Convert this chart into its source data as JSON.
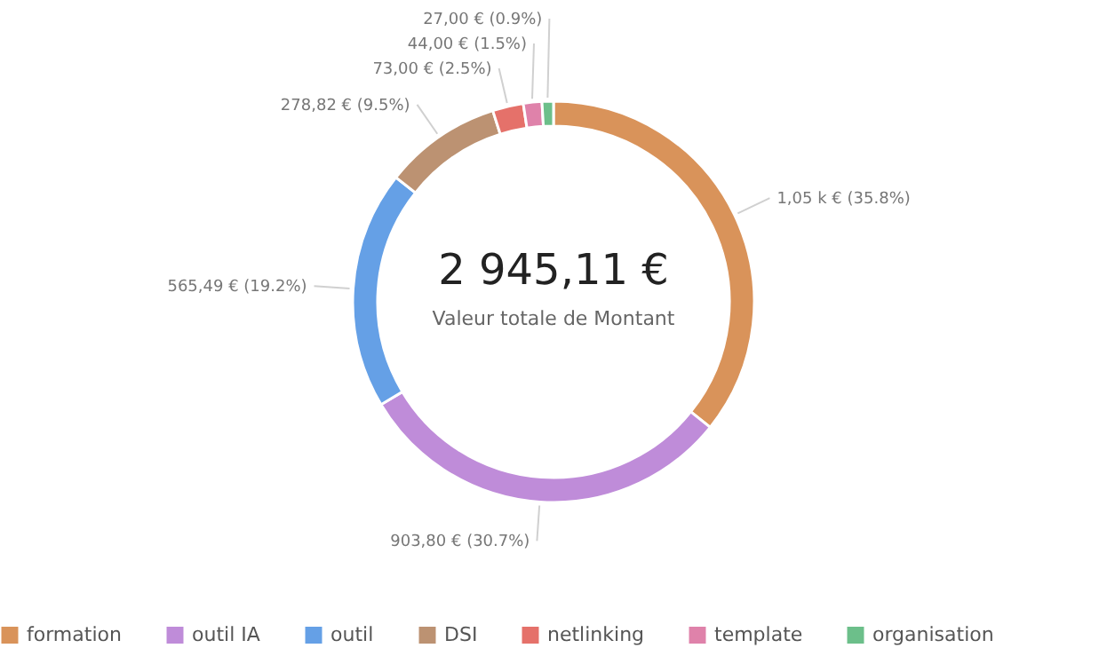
{
  "chart_data": {
    "type": "donut",
    "categories": [
      "formation",
      "outil IA",
      "outil",
      "DSI",
      "netlinking",
      "template",
      "organisation"
    ],
    "values": [
      1053.0,
      903.8,
      565.49,
      278.82,
      73.0,
      44.0,
      27.0
    ],
    "colors": [
      "#d9935a",
      "#bf8cd9",
      "#65a0e6",
      "#bc9272",
      "#e5716a",
      "#df82aa",
      "#6cbf8a"
    ],
    "value_labels": [
      "1,05 k € (35.8%)",
      "903,80 € (30.7%)",
      "565,49 € (19.2%)",
      "278,82 € (9.5%)",
      "73,00 € (2.5%)",
      "44,00 € (1.5%)",
      "27,00 € (0.9%)"
    ],
    "annotations": [
      "2 945,11 €",
      "Valeur totale de Montant"
    ],
    "legend": "bottom"
  }
}
